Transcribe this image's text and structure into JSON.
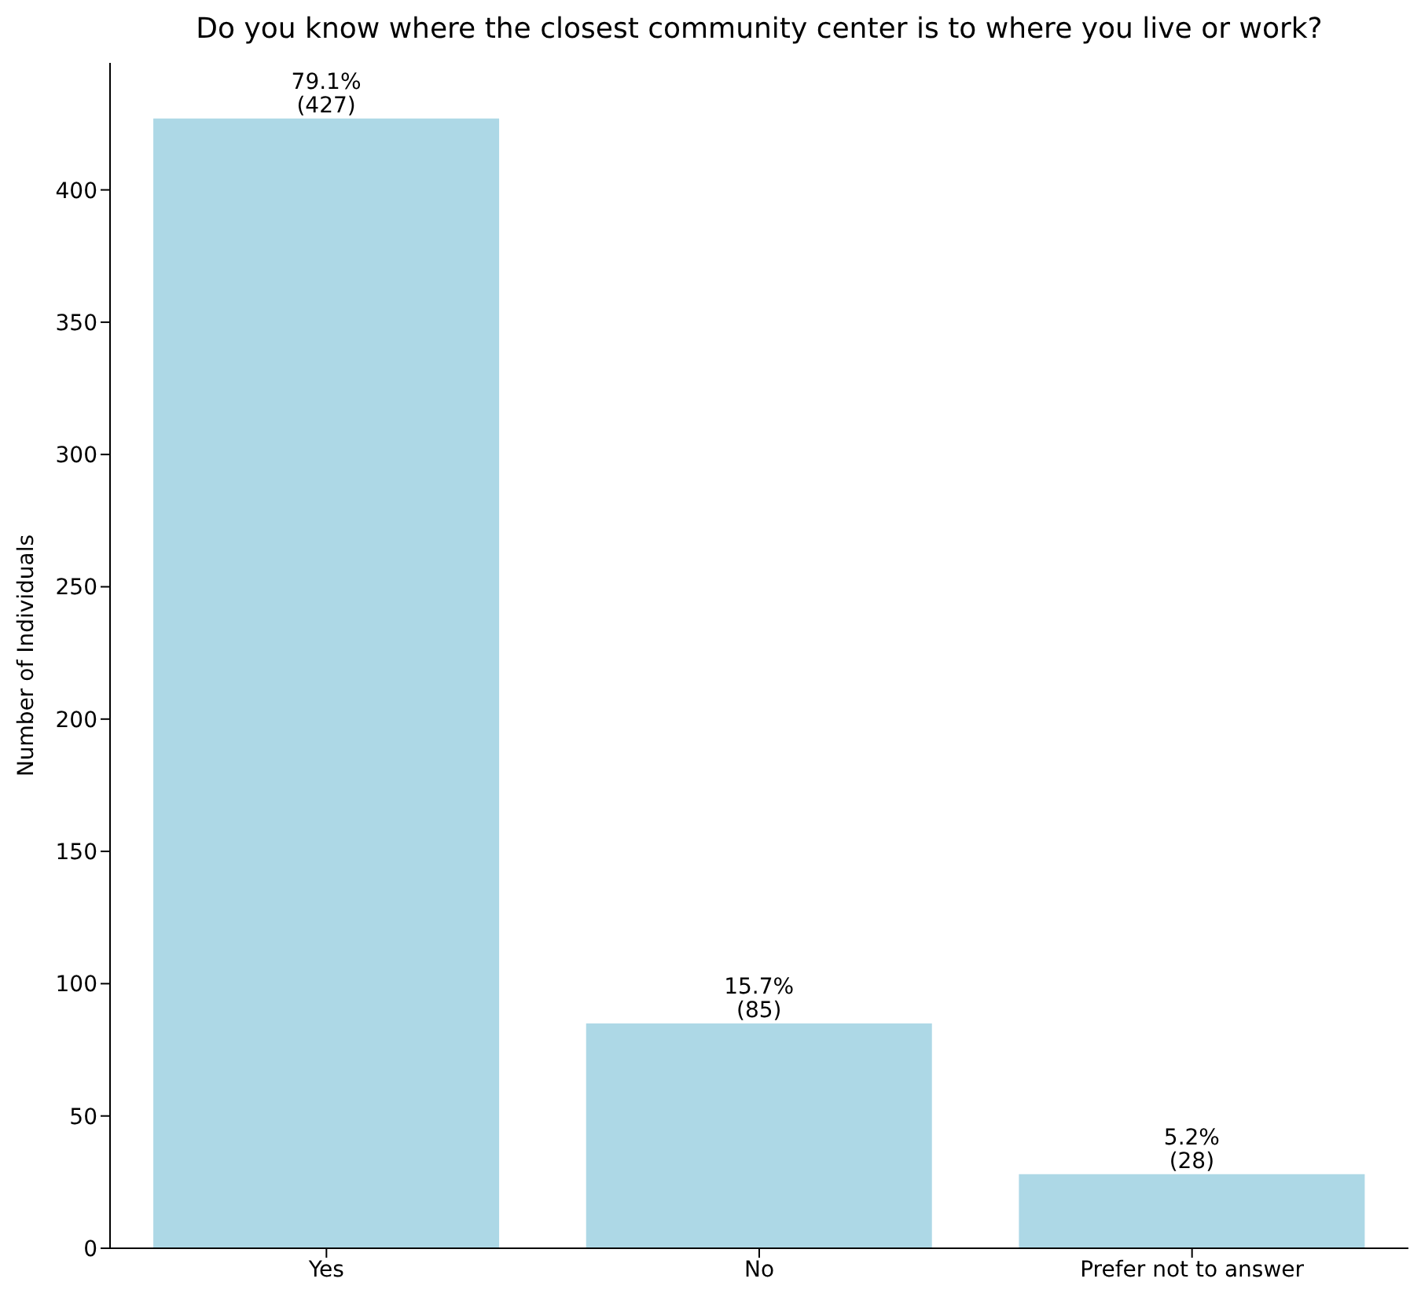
{
  "chart_data": {
    "type": "bar",
    "title": "Do you know where the closest community center is to where you live or work?",
    "ylabel": "Number of Individuals",
    "categories": [
      "Yes",
      "No",
      "Prefer not to answer"
    ],
    "values": [
      427,
      85,
      28
    ],
    "color": "#add8e6",
    "value_labels": [
      "79.1%\n(427)",
      "15.7%\n(85)",
      "5.2%\n(28)"
    ],
    "ylim": [
      0,
      448
    ],
    "yticks": [
      0,
      50,
      100,
      150,
      200,
      250,
      300,
      350,
      400
    ],
    "grid": false,
    "legend": false
  }
}
